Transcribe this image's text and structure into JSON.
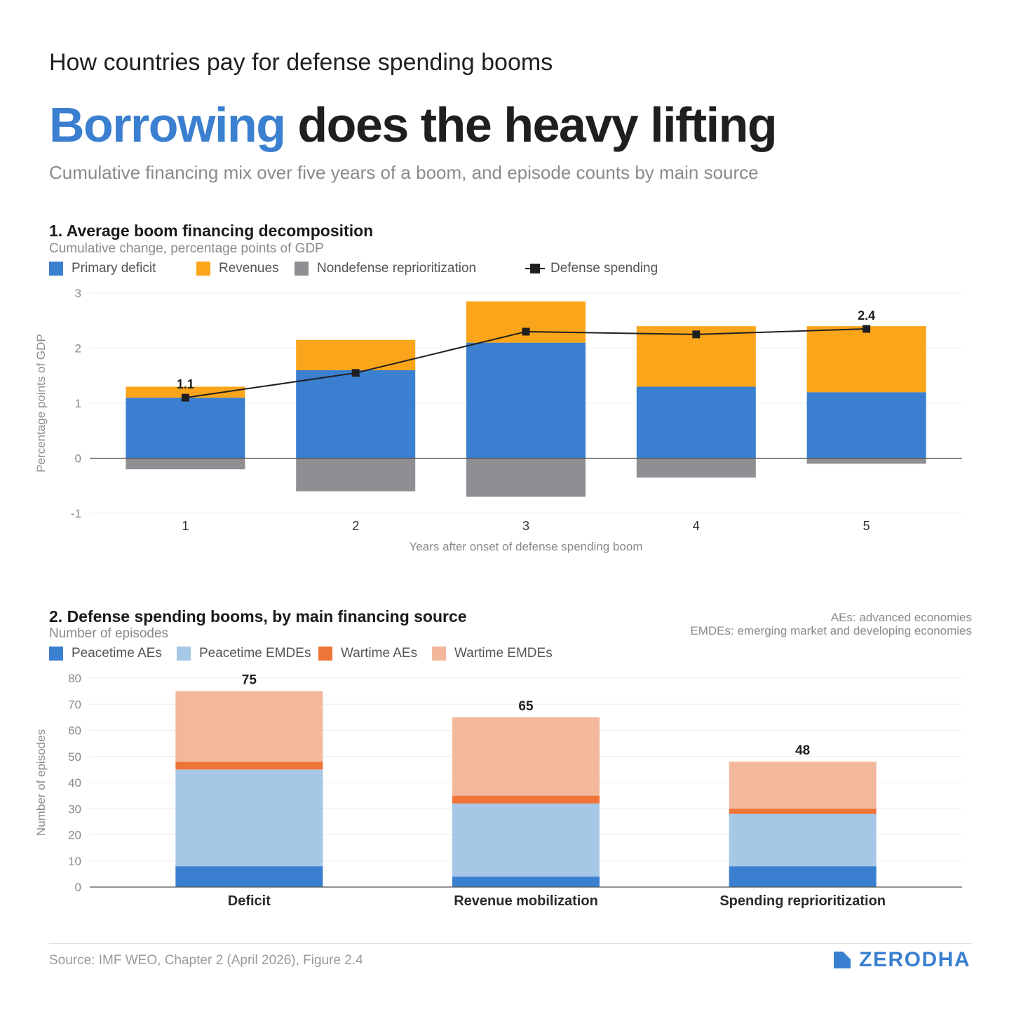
{
  "header": {
    "kicker": "How countries pay for defense spending booms",
    "headline_highlight": "Borrowing",
    "headline_rest": "does the heavy lifting",
    "dek": "Cumulative financing mix over five years of a boom, and episode counts by main source"
  },
  "colors": {
    "primary_deficit": "#3a7fd0",
    "revenues": "#fba51a",
    "nondefense": "#8e8e93",
    "defense_line": "#1f1f1f",
    "peacetime_aes": "#3a7fd0",
    "peacetime_emdes": "#a7c7e7",
    "wartime_aes": "#ef7437",
    "wartime_emdes": "#f3b89b"
  },
  "chart_data": [
    {
      "type": "bar",
      "stacked": true,
      "title": "1. Average boom financing decomposition",
      "subtitle": "Cumulative change, percentage points of GDP",
      "xlabel": "Years after onset of defense spending boom",
      "ylabel": "Percentage points of GDP",
      "ylim": [
        -1,
        3
      ],
      "yticks": [
        3,
        2,
        1,
        0,
        -1
      ],
      "categories": [
        "1",
        "2",
        "3",
        "4",
        "5"
      ],
      "series": [
        {
          "name": "Primary deficit",
          "values": [
            1.1,
            1.6,
            2.1,
            1.3,
            1.2
          ]
        },
        {
          "name": "Revenues",
          "values": [
            0.2,
            0.55,
            0.75,
            1.1,
            1.2
          ]
        },
        {
          "name": "Nondefense reprioritization",
          "values": [
            -0.2,
            -0.6,
            -0.7,
            -0.35,
            -0.1
          ]
        }
      ],
      "line": {
        "name": "Defense spending",
        "values": [
          1.1,
          1.55,
          2.3,
          2.25,
          2.35
        ]
      },
      "annotations": [
        {
          "category": "1",
          "text": "1.1"
        },
        {
          "category": "5",
          "text": "2.4"
        }
      ]
    },
    {
      "type": "bar",
      "stacked": true,
      "title": "2. Defense spending booms, by main financing source",
      "subtitle": "Number of episodes",
      "ylabel": "Number of episodes",
      "ylim": [
        0,
        80
      ],
      "yticks": [
        80,
        70,
        60,
        50,
        40,
        30,
        20,
        10,
        0
      ],
      "categories": [
        "Deficit",
        "Revenue mobilization",
        "Spending reprioritization"
      ],
      "series": [
        {
          "name": "Peacetime AEs",
          "values": [
            8,
            4,
            8
          ]
        },
        {
          "name": "Peacetime EMDEs",
          "values": [
            37,
            28,
            20
          ]
        },
        {
          "name": "Wartime AEs",
          "values": [
            3,
            3,
            2
          ]
        },
        {
          "name": "Wartime EMDEs",
          "values": [
            27,
            30,
            18
          ]
        }
      ],
      "totals": [
        "75",
        "65",
        "48"
      ],
      "notes": [
        "AEs: advanced economies",
        "EMDEs: emerging market and developing economies"
      ]
    }
  ],
  "footer": {
    "source": "Source: IMF WEO, Chapter 2 (April 2026), Figure 2.4",
    "brand": "ZERODHA"
  }
}
